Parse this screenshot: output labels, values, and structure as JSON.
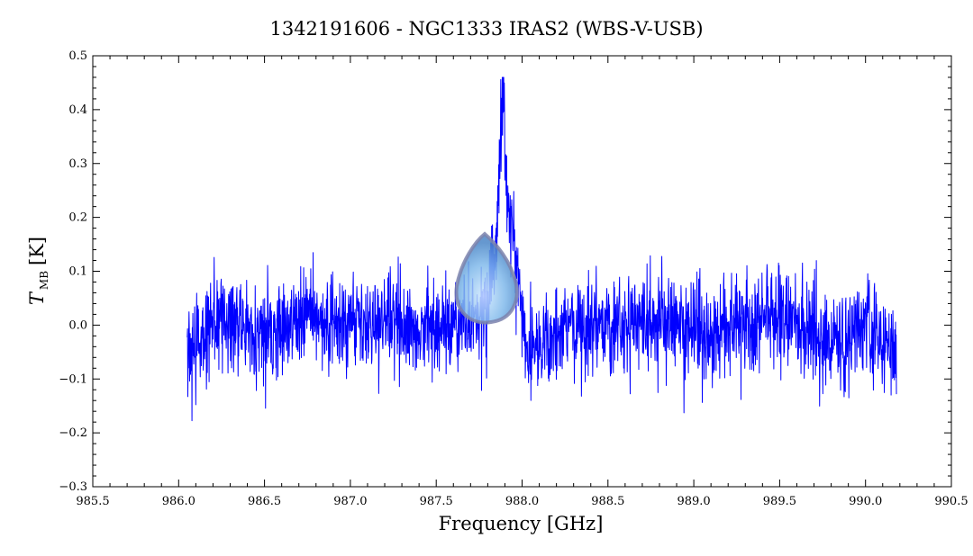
{
  "chart_data": {
    "type": "line",
    "title": "1342191606 - NGC1333 IRAS2 (WBS-V-USB)",
    "xlabel": "Frequency [GHz]",
    "ylabel_main": "T",
    "ylabel_sub": "MB",
    "ylabel_unit": "[K]",
    "xlim": [
      985.5,
      990.5
    ],
    "ylim": [
      -0.3,
      0.5
    ],
    "xticks": [
      985.5,
      986.0,
      986.5,
      987.0,
      987.5,
      988.0,
      988.5,
      989.0,
      989.5,
      990.0,
      990.5
    ],
    "xtick_labels": [
      "985.5",
      "986.0",
      "986.5",
      "987.0",
      "987.5",
      "988.0",
      "988.5",
      "989.0",
      "989.5",
      "990.0",
      "990.5"
    ],
    "yticks": [
      -0.3,
      -0.2,
      -0.1,
      0.0,
      0.1,
      0.2,
      0.3,
      0.4,
      0.5
    ],
    "ytick_labels": [
      "−0.3",
      "−0.2",
      "−0.1",
      "0.0",
      "0.1",
      "0.2",
      "0.3",
      "0.4",
      "0.5"
    ],
    "line_color": "#0000ff",
    "grid": false,
    "series": [
      {
        "x": [
          986.05,
          986.25,
          986.5,
          986.75,
          987.0,
          987.25,
          987.5,
          987.7,
          987.78,
          987.84,
          987.87,
          987.885,
          987.9,
          987.92,
          987.95,
          987.98,
          988.0,
          988.03,
          988.1,
          988.3,
          988.5,
          988.75,
          989.0,
          989.25,
          989.5,
          989.75,
          989.85,
          990.0,
          990.18
        ],
        "y": [
          -0.05,
          0.01,
          -0.02,
          0.02,
          0.0,
          0.01,
          -0.01,
          0.01,
          0.03,
          0.1,
          0.3,
          0.43,
          0.34,
          0.2,
          0.15,
          0.1,
          0.03,
          -0.05,
          -0.03,
          0.0,
          0.0,
          0.01,
          -0.01,
          0.0,
          0.02,
          -0.02,
          -0.04,
          0.01,
          -0.05
        ]
      }
    ]
  },
  "overlay": {
    "icon": "droplet-cursor-icon",
    "color": "#7fb8ea",
    "outline_color": "#7b82ad"
  }
}
